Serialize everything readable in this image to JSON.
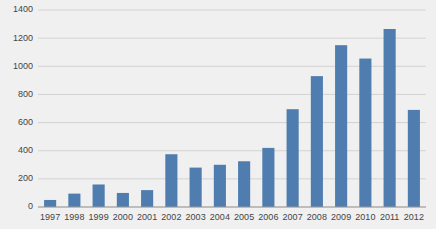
{
  "chart_data": {
    "type": "bar",
    "categories": [
      "1997",
      "1998",
      "1999",
      "2000",
      "2001",
      "2002",
      "2003",
      "2004",
      "2005",
      "2006",
      "2007",
      "2008",
      "2009",
      "2010",
      "2011",
      "2012"
    ],
    "values": [
      50,
      95,
      160,
      100,
      120,
      375,
      280,
      300,
      325,
      420,
      695,
      930,
      1150,
      1055,
      1265,
      690
    ],
    "color": "#4f7daf",
    "ylim": [
      0,
      1400
    ],
    "yticks": [
      0,
      200,
      400,
      600,
      800,
      1000,
      1200,
      1400
    ],
    "grid": true
  }
}
